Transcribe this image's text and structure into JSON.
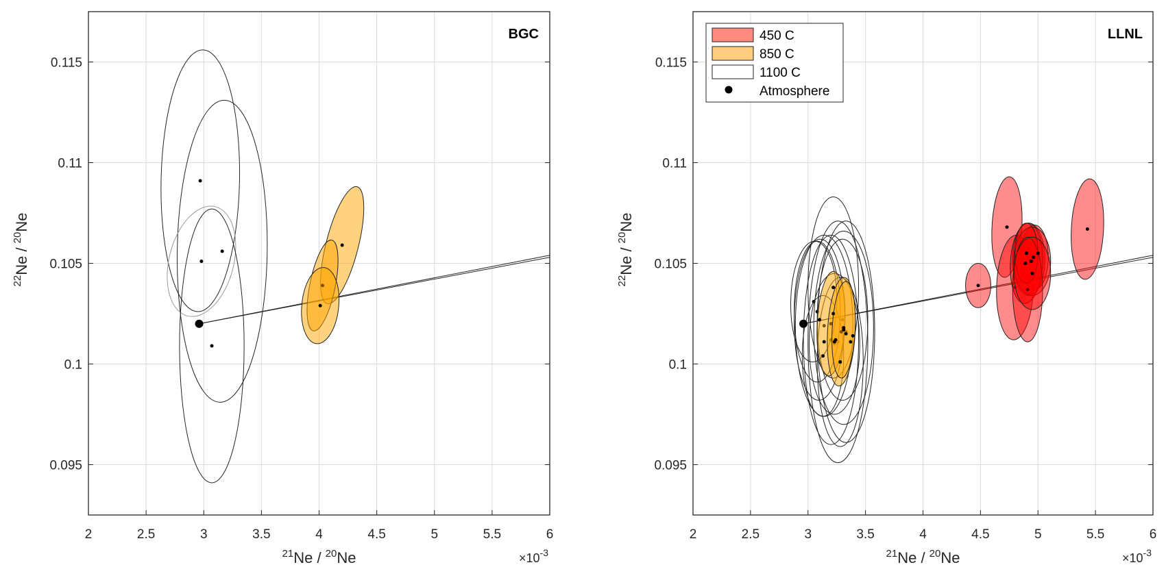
{
  "chart_data": [
    {
      "type": "scatter",
      "panel_title": "BGC",
      "xlabel": "21Ne / 20Ne",
      "xlabel_parts": {
        "sup1": "21",
        "main1": "Ne / ",
        "sup2": "20",
        "main2": "Ne"
      },
      "ylabel_parts": {
        "sup1": "22",
        "main1": "Ne / ",
        "sup2": "20",
        "main2": "Ne"
      },
      "x_exponent": {
        "prefix": "×10",
        "power": "-3"
      },
      "xlim": [
        2,
        6
      ],
      "ylim": [
        0.0925,
        0.1175
      ],
      "xticks": [
        2,
        2.5,
        3,
        3.5,
        4,
        4.5,
        5,
        5.5,
        6
      ],
      "xtick_labels": [
        "2",
        "2.5",
        "3",
        "3.5",
        "4",
        "4.5",
        "5",
        "5.5",
        "6"
      ],
      "yticks": [
        0.095,
        0.1,
        0.105,
        0.11,
        0.115
      ],
      "ytick_labels": [
        "0.095",
        "0.1",
        "0.105",
        "0.11",
        "0.115"
      ],
      "grid": true,
      "atmosphere": {
        "x": 2.96,
        "y": 0.102
      },
      "series": [
        {
          "name": "1100 C",
          "fill": "none",
          "ellipses": [
            {
              "cx": 2.97,
              "cy": 0.1091,
              "rx": 0.34,
              "ry": 0.0065,
              "tilt": 0.02,
              "stroke": "#222222"
            },
            {
              "cx": 3.16,
              "cy": 0.1056,
              "rx": 0.39,
              "ry": 0.0075,
              "tilt": 0.015,
              "stroke": "#222222"
            },
            {
              "cx": 2.98,
              "cy": 0.1051,
              "rx": 0.28,
              "ry": 0.0028,
              "tilt": 0.25,
              "stroke": "#999999"
            },
            {
              "cx": 3.07,
              "cy": 0.1009,
              "rx": 0.28,
              "ry": 0.0068,
              "tilt": 0.0,
              "stroke": "#222222"
            }
          ]
        },
        {
          "name": "850 C",
          "fill": "#FFA500",
          "ellipses": [
            {
              "cx": 4.2,
              "cy": 0.1059,
              "rx": 0.14,
              "ry": 0.003,
              "tilt": 0.25
            },
            {
              "cx": 4.03,
              "cy": 0.1039,
              "rx": 0.11,
              "ry": 0.0023,
              "tilt": 0.2
            },
            {
              "cx": 4.01,
              "cy": 0.1029,
              "rx": 0.16,
              "ry": 0.0019,
              "tilt": 0.1
            }
          ]
        }
      ],
      "mixing_lines": [
        {
          "x0": 2.96,
          "y0": 0.102,
          "x1": 6.0,
          "y1": 0.1054
        },
        {
          "x0": 2.96,
          "y0": 0.102,
          "x1": 6.0,
          "y1": 0.1053
        }
      ]
    },
    {
      "type": "scatter",
      "panel_title": "LLNL",
      "xlabel": "21Ne / 20Ne",
      "xlabel_parts": {
        "sup1": "21",
        "main1": "Ne / ",
        "sup2": "20",
        "main2": "Ne"
      },
      "ylabel_parts": {
        "sup1": "22",
        "main1": "Ne / ",
        "sup2": "20",
        "main2": "Ne"
      },
      "x_exponent": {
        "prefix": "×10",
        "power": "-3"
      },
      "xlim": [
        2,
        6
      ],
      "ylim": [
        0.0925,
        0.1175
      ],
      "xticks": [
        2,
        2.5,
        3,
        3.5,
        4,
        4.5,
        5,
        5.5,
        6
      ],
      "xtick_labels": [
        "2",
        "2.5",
        "3",
        "3.5",
        "4",
        "4.5",
        "5",
        "5.5",
        "6"
      ],
      "yticks": [
        0.095,
        0.1,
        0.105,
        0.11,
        0.115
      ],
      "ytick_labels": [
        "0.095",
        "0.1",
        "0.105",
        "0.11",
        "0.115"
      ],
      "grid": true,
      "legend": {
        "placement": "top-left",
        "entries": [
          {
            "label": "450 C",
            "swatch": "#FF8A80"
          },
          {
            "label": "850 C",
            "swatch": "#FFCC80"
          },
          {
            "label": "1100 C",
            "swatch": "#FFFFFF"
          },
          {
            "label": "Atmosphere",
            "swatch": "dot"
          }
        ]
      },
      "atmosphere": {
        "x": 2.96,
        "y": 0.102
      },
      "series": [
        {
          "name": "1100 C",
          "fill": "none",
          "ellipses": [
            {
              "cx": 3.05,
              "cy": 0.1031,
              "rx": 0.2,
              "ry": 0.003,
              "tilt": 0.02
            },
            {
              "cx": 3.1,
              "cy": 0.1022,
              "rx": 0.22,
              "ry": 0.004,
              "tilt": 0.01
            },
            {
              "cx": 3.08,
              "cy": 0.1026,
              "rx": 0.2,
              "ry": 0.0035,
              "tilt": 0.0
            },
            {
              "cx": 3.14,
              "cy": 0.1019,
              "rx": 0.25,
              "ry": 0.0045,
              "tilt": 0.0
            },
            {
              "cx": 3.22,
              "cy": 0.1038,
              "rx": 0.22,
              "ry": 0.0045,
              "tilt": 0.0
            },
            {
              "cx": 3.2,
              "cy": 0.1012,
              "rx": 0.24,
              "ry": 0.0052,
              "tilt": 0.0
            },
            {
              "cx": 3.26,
              "cy": 0.1011,
              "rx": 0.26,
              "ry": 0.006,
              "tilt": 0.0
            },
            {
              "cx": 3.3,
              "cy": 0.1022,
              "rx": 0.22,
              "ry": 0.004,
              "tilt": 0.0
            },
            {
              "cx": 3.31,
              "cy": 0.1018,
              "rx": 0.26,
              "ry": 0.0048,
              "tilt": 0.0
            },
            {
              "cx": 3.33,
              "cy": 0.1016,
              "rx": 0.25,
              "ry": 0.0055,
              "tilt": 0.0
            },
            {
              "cx": 3.23,
              "cy": 0.101,
              "rx": 0.22,
              "ry": 0.0035,
              "tilt": 0.0
            },
            {
              "cx": 3.28,
              "cy": 0.1001,
              "rx": 0.2,
              "ry": 0.0042,
              "tilt": 0.0
            },
            {
              "cx": 3.13,
              "cy": 0.1004,
              "rx": 0.18,
              "ry": 0.003,
              "tilt": 0.0
            }
          ]
        },
        {
          "name": "850 C",
          "fill": "#FFA500",
          "ellipses": [
            {
              "cx": 3.2,
              "cy": 0.102,
              "rx": 0.12,
              "ry": 0.0026,
              "tilt": 0.05
            },
            {
              "cx": 3.29,
              "cy": 0.1016,
              "rx": 0.12,
              "ry": 0.0027,
              "tilt": 0.05
            },
            {
              "cx": 3.31,
              "cy": 0.1017,
              "rx": 0.1,
              "ry": 0.0024,
              "tilt": 0.05
            }
          ]
        },
        {
          "name": "450 C",
          "fill": "#FF0000",
          "ellipses": [
            {
              "cx": 4.73,
              "cy": 0.1068,
              "rx": 0.13,
              "ry": 0.0025,
              "tilt": 0.05
            },
            {
              "cx": 5.43,
              "cy": 0.1067,
              "rx": 0.14,
              "ry": 0.0025,
              "tilt": 0.05
            },
            {
              "cx": 4.48,
              "cy": 0.1039,
              "rx": 0.11,
              "ry": 0.0011,
              "tilt": 0.0
            },
            {
              "cx": 4.8,
              "cy": 0.1038,
              "rx": 0.16,
              "ry": 0.0026,
              "tilt": 0.03
            },
            {
              "cx": 4.92,
              "cy": 0.1052,
              "rx": 0.14,
              "ry": 0.0018,
              "tilt": 0.0
            },
            {
              "cx": 4.97,
              "cy": 0.1053,
              "rx": 0.12,
              "ry": 0.0016,
              "tilt": 0.0
            },
            {
              "cx": 4.9,
              "cy": 0.105,
              "rx": 0.14,
              "ry": 0.002,
              "tilt": 0.05
            },
            {
              "cx": 4.95,
              "cy": 0.1051,
              "rx": 0.16,
              "ry": 0.0017,
              "tilt": 0.0
            },
            {
              "cx": 4.9,
              "cy": 0.1055,
              "rx": 0.1,
              "ry": 0.0015,
              "tilt": 0.0
            },
            {
              "cx": 4.91,
              "cy": 0.1037,
              "rx": 0.13,
              "ry": 0.0026,
              "tilt": 0.0
            },
            {
              "cx": 4.95,
              "cy": 0.1045,
              "rx": 0.16,
              "ry": 0.0018,
              "tilt": 0.0
            }
          ]
        }
      ],
      "points_extra": [
        {
          "x": 4.9,
          "y": 0.1055
        },
        {
          "x": 4.96,
          "y": 0.1053
        },
        {
          "x": 5.0,
          "y": 0.1055
        },
        {
          "x": 4.89,
          "y": 0.105
        },
        {
          "x": 4.94,
          "y": 0.1051
        },
        {
          "x": 3.22,
          "y": 0.1038
        },
        {
          "x": 3.1,
          "y": 0.1022
        },
        {
          "x": 3.22,
          "y": 0.1025
        },
        {
          "x": 3.31,
          "y": 0.1018
        },
        {
          "x": 3.24,
          "y": 0.1012
        },
        {
          "x": 3.14,
          "y": 0.1011
        },
        {
          "x": 3.23,
          "y": 0.1011
        },
        {
          "x": 3.37,
          "y": 0.1011
        },
        {
          "x": 3.28,
          "y": 0.1001
        },
        {
          "x": 3.13,
          "y": 0.1004
        },
        {
          "x": 3.33,
          "y": 0.1015
        },
        {
          "x": 3.39,
          "y": 0.1014
        }
      ],
      "mixing_lines": [
        {
          "x0": 2.96,
          "y0": 0.102,
          "x1": 6.0,
          "y1": 0.1054
        },
        {
          "x0": 2.96,
          "y0": 0.102,
          "x1": 6.0,
          "y1": 0.1053
        }
      ]
    }
  ]
}
